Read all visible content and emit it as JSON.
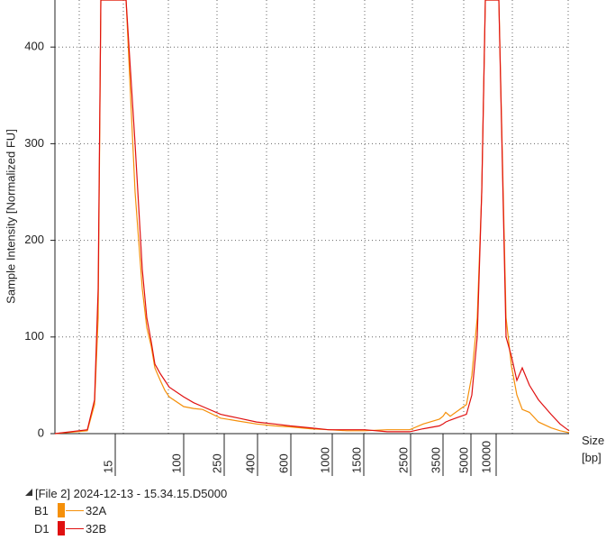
{
  "chart_data": {
    "type": "line",
    "ylabel": "Sample Intensity [Normalized FU]",
    "xlabel": "Size",
    "xunit": "[bp]",
    "ylim": [
      0,
      450
    ],
    "yticks": [
      0,
      100,
      200,
      300,
      400
    ],
    "xticks": [
      "15",
      "100",
      "250",
      "400",
      "600",
      "1000",
      "1500",
      "2500",
      "3500",
      "5000",
      "10000"
    ],
    "grid": true,
    "series": [
      {
        "name": "32A",
        "well": "B1",
        "color": "#f5900a",
        "points": [
          [
            "0",
            0
          ],
          [
            "10",
            3
          ],
          [
            "12",
            30
          ],
          [
            "13",
            120
          ],
          [
            "14",
            450
          ],
          [
            "15",
            450
          ],
          [
            "16",
            450
          ],
          [
            "20",
            450
          ],
          [
            "25",
            250
          ],
          [
            "30",
            150
          ],
          [
            "35",
            110
          ],
          [
            "40",
            90
          ],
          [
            "50",
            68
          ],
          [
            "60",
            55
          ],
          [
            "70",
            45
          ],
          [
            "80",
            38
          ],
          [
            "100",
            28
          ],
          [
            "130",
            26
          ],
          [
            "175",
            25
          ],
          [
            "250",
            16
          ],
          [
            "325",
            13
          ],
          [
            "400",
            10
          ],
          [
            "500",
            8
          ],
          [
            "600",
            7
          ],
          [
            "800",
            5
          ],
          [
            "1000",
            4
          ],
          [
            "1250",
            3
          ],
          [
            "1500",
            3
          ],
          [
            "2000",
            4
          ],
          [
            "2500",
            4
          ],
          [
            "3000",
            10
          ],
          [
            "3500",
            15
          ],
          [
            "4000",
            18
          ],
          [
            "4250",
            22
          ],
          [
            "4500",
            18
          ],
          [
            "5000",
            30
          ],
          [
            "6000",
            60
          ],
          [
            "7000",
            120
          ],
          [
            "8000",
            250
          ],
          [
            "9000",
            450
          ],
          [
            "10000",
            450
          ],
          [
            "11000",
            450
          ],
          [
            "12000",
            450
          ],
          [
            "13000",
            120
          ],
          [
            "14000",
            70
          ],
          [
            "15000",
            40
          ],
          [
            "16000",
            25
          ],
          [
            "17000",
            22
          ],
          [
            "18000",
            12
          ],
          [
            "19000",
            6
          ],
          [
            "20000",
            3
          ],
          [
            "21000",
            1
          ]
        ]
      },
      {
        "name": "32B",
        "well": "D1",
        "color": "#e01010",
        "points": [
          [
            "0",
            0
          ],
          [
            "10",
            4
          ],
          [
            "12",
            35
          ],
          [
            "13",
            150
          ],
          [
            "14",
            450
          ],
          [
            "15",
            450
          ],
          [
            "16",
            450
          ],
          [
            "20",
            450
          ],
          [
            "25",
            300
          ],
          [
            "30",
            170
          ],
          [
            "35",
            120
          ],
          [
            "40",
            95
          ],
          [
            "50",
            72
          ],
          [
            "60",
            62
          ],
          [
            "70",
            55
          ],
          [
            "80",
            48
          ],
          [
            "100",
            38
          ],
          [
            "130",
            32
          ],
          [
            "175",
            28
          ],
          [
            "250",
            20
          ],
          [
            "325",
            16
          ],
          [
            "400",
            12
          ],
          [
            "500",
            10
          ],
          [
            "600",
            8
          ],
          [
            "800",
            6
          ],
          [
            "1000",
            4
          ],
          [
            "1250",
            4
          ],
          [
            "1500",
            4
          ],
          [
            "2000",
            2
          ],
          [
            "2500",
            2
          ],
          [
            "3000",
            5
          ],
          [
            "3500",
            8
          ],
          [
            "4000",
            10
          ],
          [
            "4250",
            12
          ],
          [
            "4500",
            14
          ],
          [
            "5000",
            20
          ],
          [
            "6000",
            40
          ],
          [
            "7000",
            100
          ],
          [
            "8000",
            250
          ],
          [
            "9000",
            450
          ],
          [
            "10000",
            450
          ],
          [
            "11000",
            450
          ],
          [
            "12000",
            450
          ],
          [
            "13000",
            100
          ],
          [
            "14000",
            80
          ],
          [
            "15000",
            55
          ],
          [
            "16000",
            68
          ],
          [
            "17000",
            50
          ],
          [
            "18000",
            35
          ],
          [
            "19000",
            20
          ],
          [
            "20000",
            10
          ],
          [
            "21000",
            3
          ]
        ]
      }
    ]
  },
  "legend": {
    "file_label": "[File 2] 2024-12-13 - 15.34.15.D5000",
    "entries": [
      {
        "well": "B1",
        "name": "32A",
        "color": "#f5900a"
      },
      {
        "well": "D1",
        "name": "32B",
        "color": "#e01010"
      }
    ]
  }
}
